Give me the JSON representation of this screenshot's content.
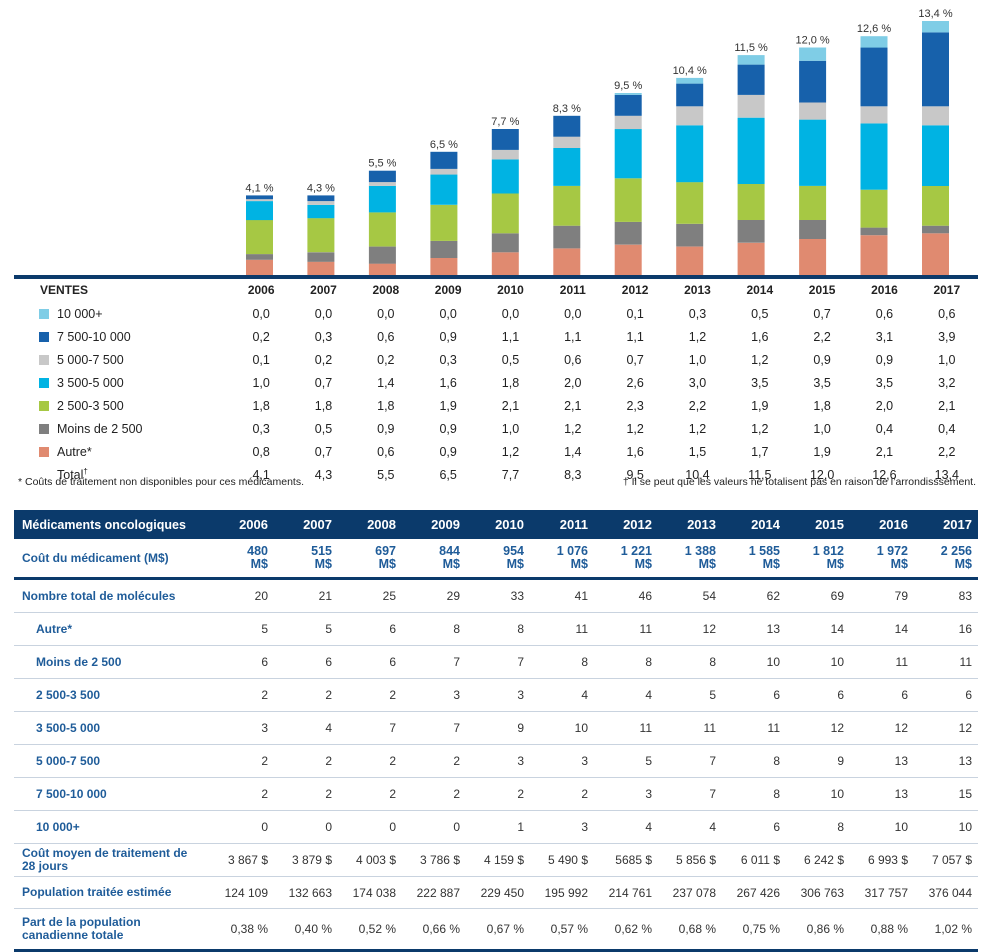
{
  "chart_data": {
    "type": "bar",
    "stacked": true,
    "categories": [
      "2006",
      "2007",
      "2008",
      "2009",
      "2010",
      "2011",
      "2012",
      "2013",
      "2014",
      "2015",
      "2016",
      "2017"
    ],
    "series": [
      {
        "name": "Autre*",
        "color": "#e08a70",
        "values": [
          0.8,
          0.7,
          0.6,
          0.9,
          1.2,
          1.4,
          1.6,
          1.5,
          1.7,
          1.9,
          2.1,
          2.2
        ]
      },
      {
        "name": "Moins de 2 500",
        "color": "#7f7f7f",
        "values": [
          0.3,
          0.5,
          0.9,
          0.9,
          1.0,
          1.2,
          1.2,
          1.2,
          1.2,
          1.0,
          0.4,
          0.4
        ]
      },
      {
        "name": "2 500-3 500",
        "color": "#a6c844",
        "values": [
          1.8,
          1.8,
          1.8,
          1.9,
          2.1,
          2.1,
          2.3,
          2.2,
          1.9,
          1.8,
          2.0,
          2.1
        ]
      },
      {
        "name": "3 500-5 000",
        "color": "#00b3e3",
        "values": [
          1.0,
          0.7,
          1.4,
          1.6,
          1.8,
          2.0,
          2.6,
          3.0,
          3.5,
          3.5,
          3.5,
          3.2
        ]
      },
      {
        "name": "5 000-7 500",
        "color": "#c8c8c8",
        "values": [
          0.1,
          0.2,
          0.2,
          0.3,
          0.5,
          0.6,
          0.7,
          1.0,
          1.2,
          0.9,
          0.9,
          1.0
        ]
      },
      {
        "name": "7 500-10 000",
        "color": "#1761ab",
        "values": [
          0.2,
          0.3,
          0.6,
          0.9,
          1.1,
          1.1,
          1.1,
          1.2,
          1.6,
          2.2,
          3.1,
          3.9
        ]
      },
      {
        "name": "10 000+",
        "color": "#7fcde6",
        "values": [
          0.0,
          0.0,
          0.0,
          0.0,
          0.0,
          0.0,
          0.1,
          0.3,
          0.5,
          0.7,
          0.6,
          0.6
        ]
      }
    ],
    "totals": [
      4.1,
      4.3,
      5.5,
      6.5,
      7.7,
      8.3,
      9.5,
      10.4,
      11.5,
      12.0,
      12.6,
      13.4
    ],
    "total_labels": [
      "4,1 %",
      "4,3 %",
      "5,5 %",
      "6,5 %",
      "7,7 %",
      "8,3 %",
      "9,5 %",
      "10,4 %",
      "11,5 %",
      "12,0 %",
      "12,6 %",
      "13,4 %"
    ],
    "ylim": [
      0,
      13.4
    ]
  },
  "sales_table": {
    "header": "VENTES",
    "years": [
      "2006",
      "2007",
      "2008",
      "2009",
      "2010",
      "2011",
      "2012",
      "2013",
      "2014",
      "2015",
      "2016",
      "2017"
    ],
    "rows": [
      {
        "label": "10 000+",
        "color": "#7fcde6",
        "values": [
          "0,0",
          "0,0",
          "0,0",
          "0,0",
          "0,0",
          "0,0",
          "0,1",
          "0,3",
          "0,5",
          "0,7",
          "0,6",
          "0,6"
        ]
      },
      {
        "label": "7 500-10 000",
        "color": "#1761ab",
        "values": [
          "0,2",
          "0,3",
          "0,6",
          "0,9",
          "1,1",
          "1,1",
          "1,1",
          "1,2",
          "1,6",
          "2,2",
          "3,1",
          "3,9"
        ]
      },
      {
        "label": "5 000-7 500",
        "color": "#c8c8c8",
        "values": [
          "0,1",
          "0,2",
          "0,2",
          "0,3",
          "0,5",
          "0,6",
          "0,7",
          "1,0",
          "1,2",
          "0,9",
          "0,9",
          "1,0"
        ]
      },
      {
        "label": "3 500-5 000",
        "color": "#00b3e3",
        "values": [
          "1,0",
          "0,7",
          "1,4",
          "1,6",
          "1,8",
          "2,0",
          "2,6",
          "3,0",
          "3,5",
          "3,5",
          "3,5",
          "3,2"
        ]
      },
      {
        "label": "2 500-3 500",
        "color": "#a6c844",
        "values": [
          "1,8",
          "1,8",
          "1,8",
          "1,9",
          "2,1",
          "2,1",
          "2,3",
          "2,2",
          "1,9",
          "1,8",
          "2,0",
          "2,1"
        ]
      },
      {
        "label": "Moins de 2 500",
        "color": "#7f7f7f",
        "values": [
          "0,3",
          "0,5",
          "0,9",
          "0,9",
          "1,0",
          "1,2",
          "1,2",
          "1,2",
          "1,2",
          "1,0",
          "0,4",
          "0,4"
        ]
      },
      {
        "label": "Autre*",
        "color": "#e08a70",
        "values": [
          "0,8",
          "0,7",
          "0,6",
          "0,9",
          "1,2",
          "1,4",
          "1,6",
          "1,5",
          "1,7",
          "1,9",
          "2,1",
          "2,2"
        ]
      }
    ],
    "total": {
      "label": "Total",
      "dagger": "†",
      "values": [
        "4,1",
        "4,3",
        "5,5",
        "6,5",
        "7,7",
        "8,3",
        "9,5",
        "10,4",
        "11,5",
        "12,0",
        "12,6",
        "13,4"
      ]
    }
  },
  "footnotes": {
    "left": "* Coûts de traitement non disponibles pour ces médicaments.",
    "right": "† Il se peut que les valeurs ne totalisent pas en raison de l’arrondisssement."
  },
  "onc_table": {
    "header": "Médicaments oncologiques",
    "years": [
      "2006",
      "2007",
      "2008",
      "2009",
      "2010",
      "2011",
      "2012",
      "2013",
      "2014",
      "2015",
      "2016",
      "2017"
    ],
    "cost_row": {
      "label": "Coût du médicament (M$)",
      "values": [
        "480",
        "515",
        "697",
        "844",
        "954",
        "1 076",
        "1 221",
        "1 388",
        "1 585",
        "1 812",
        "1 972",
        "2 256"
      ],
      "unit": "M$"
    },
    "molecules_row": {
      "label": "Nombre total de molécules",
      "values": [
        "20",
        "21",
        "25",
        "29",
        "33",
        "41",
        "46",
        "54",
        "62",
        "69",
        "79",
        "83"
      ]
    },
    "sub_rows": [
      {
        "label": "Autre*",
        "values": [
          "5",
          "5",
          "6",
          "8",
          "8",
          "11",
          "11",
          "12",
          "13",
          "14",
          "14",
          "16"
        ]
      },
      {
        "label": "Moins de  2 500",
        "values": [
          "6",
          "6",
          "6",
          "7",
          "7",
          "8",
          "8",
          "8",
          "10",
          "10",
          "11",
          "11"
        ]
      },
      {
        "label": "2 500-3 500",
        "values": [
          "2",
          "2",
          "2",
          "3",
          "3",
          "4",
          "4",
          "5",
          "6",
          "6",
          "6",
          "6"
        ]
      },
      {
        "label": "3 500-5 000",
        "values": [
          "3",
          "4",
          "7",
          "7",
          "9",
          "10",
          "11",
          "11",
          "11",
          "12",
          "12",
          "12"
        ]
      },
      {
        "label": "5 000-7 500",
        "values": [
          "2",
          "2",
          "2",
          "2",
          "3",
          "3",
          "5",
          "7",
          "8",
          "9",
          "13",
          "13"
        ]
      },
      {
        "label": "7 500-10 000",
        "values": [
          "2",
          "2",
          "2",
          "2",
          "2",
          "2",
          "3",
          "7",
          "8",
          "10",
          "13",
          "15"
        ]
      },
      {
        "label": "10 000+",
        "values": [
          "0",
          "0",
          "0",
          "0",
          "1",
          "3",
          "4",
          "4",
          "6",
          "8",
          "10",
          "10"
        ]
      }
    ],
    "avg_cost_row": {
      "label": "Coût moyen de traitement de 28 jours",
      "values": [
        "3 867 $",
        "3 879 $",
        "4 003 $",
        "3 786 $",
        "4 159 $",
        "5 490 $",
        "5685 $",
        "5 856 $",
        "6 011 $",
        "6 242 $",
        "6 993 $",
        "7 057 $"
      ]
    },
    "population_row": {
      "label": "Population traitée estimée",
      "values": [
        "124 109",
        "132 663",
        "174 038",
        "222 887",
        "229 450",
        "195 992",
        "214 761",
        "237 078",
        "267 426",
        "306 763",
        "317 757",
        "376 044"
      ]
    },
    "share_row": {
      "label": "Part de la population canadienne totale",
      "values": [
        "0,38 %",
        "0,40 %",
        "0,52 %",
        "0,66 %",
        "0,67 %",
        "0,57 %",
        "0,62 %",
        "0,68 %",
        "0,75 %",
        "0,86 %",
        "0,88 %",
        "1,02 %"
      ]
    }
  }
}
